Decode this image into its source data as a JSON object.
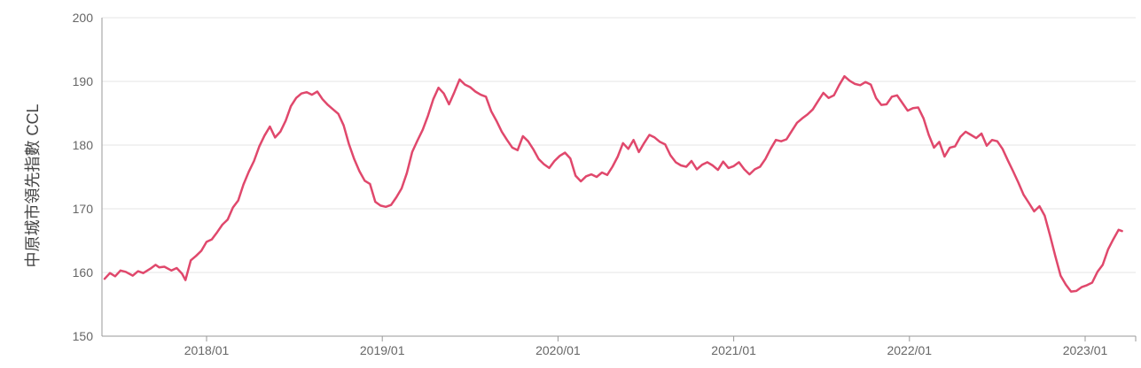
{
  "chart_data": {
    "type": "line",
    "ylabel": "中原城市領先指數 CCL",
    "ylim": [
      150,
      200
    ],
    "y_ticks": [
      150,
      160,
      170,
      180,
      190,
      200
    ],
    "x_ticks": [
      "2018/01",
      "2019/01",
      "2020/01",
      "2021/01",
      "2022/01",
      "2023/01"
    ],
    "grid": "horizontal",
    "line_color": "#e0486c",
    "series": [
      {
        "values": [
          [
            2017.42,
            159.0
          ],
          [
            2017.45,
            159.9
          ],
          [
            2017.48,
            159.4
          ],
          [
            2017.51,
            160.3
          ],
          [
            2017.54,
            160.1
          ],
          [
            2017.58,
            159.5
          ],
          [
            2017.61,
            160.2
          ],
          [
            2017.64,
            159.9
          ],
          [
            2017.68,
            160.6
          ],
          [
            2017.71,
            161.2
          ],
          [
            2017.73,
            160.8
          ],
          [
            2017.76,
            160.9
          ],
          [
            2017.8,
            160.3
          ],
          [
            2017.83,
            160.7
          ],
          [
            2017.86,
            159.8
          ],
          [
            2017.88,
            158.8
          ],
          [
            2017.91,
            161.9
          ],
          [
            2017.94,
            162.6
          ],
          [
            2017.97,
            163.4
          ],
          [
            2018.0,
            164.8
          ],
          [
            2018.03,
            165.2
          ],
          [
            2018.06,
            166.3
          ],
          [
            2018.09,
            167.5
          ],
          [
            2018.12,
            168.3
          ],
          [
            2018.15,
            170.2
          ],
          [
            2018.18,
            171.3
          ],
          [
            2018.21,
            173.8
          ],
          [
            2018.24,
            175.8
          ],
          [
            2018.27,
            177.5
          ],
          [
            2018.3,
            179.8
          ],
          [
            2018.33,
            181.5
          ],
          [
            2018.36,
            182.9
          ],
          [
            2018.39,
            181.2
          ],
          [
            2018.42,
            182.1
          ],
          [
            2018.45,
            183.8
          ],
          [
            2018.48,
            186.1
          ],
          [
            2018.51,
            187.4
          ],
          [
            2018.54,
            188.1
          ],
          [
            2018.57,
            188.3
          ],
          [
            2018.6,
            187.9
          ],
          [
            2018.63,
            188.4
          ],
          [
            2018.66,
            187.2
          ],
          [
            2018.69,
            186.3
          ],
          [
            2018.72,
            185.6
          ],
          [
            2018.75,
            184.9
          ],
          [
            2018.78,
            183.1
          ],
          [
            2018.81,
            180.2
          ],
          [
            2018.84,
            177.8
          ],
          [
            2018.87,
            175.9
          ],
          [
            2018.9,
            174.4
          ],
          [
            2018.93,
            173.9
          ],
          [
            2018.96,
            171.1
          ],
          [
            2018.99,
            170.5
          ],
          [
            2019.02,
            170.3
          ],
          [
            2019.05,
            170.6
          ],
          [
            2019.08,
            171.8
          ],
          [
            2019.11,
            173.2
          ],
          [
            2019.14,
            175.6
          ],
          [
            2019.17,
            178.9
          ],
          [
            2019.2,
            180.7
          ],
          [
            2019.23,
            182.4
          ],
          [
            2019.26,
            184.6
          ],
          [
            2019.29,
            187.2
          ],
          [
            2019.32,
            189.0
          ],
          [
            2019.35,
            188.1
          ],
          [
            2019.38,
            186.4
          ],
          [
            2019.41,
            188.3
          ],
          [
            2019.44,
            190.3
          ],
          [
            2019.47,
            189.5
          ],
          [
            2019.5,
            189.1
          ],
          [
            2019.53,
            188.4
          ],
          [
            2019.56,
            187.9
          ],
          [
            2019.59,
            187.6
          ],
          [
            2019.62,
            185.3
          ],
          [
            2019.65,
            183.8
          ],
          [
            2019.68,
            182.1
          ],
          [
            2019.71,
            180.8
          ],
          [
            2019.74,
            179.6
          ],
          [
            2019.77,
            179.2
          ],
          [
            2019.8,
            181.4
          ],
          [
            2019.83,
            180.6
          ],
          [
            2019.86,
            179.3
          ],
          [
            2019.89,
            177.8
          ],
          [
            2019.92,
            177.0
          ],
          [
            2019.95,
            176.4
          ],
          [
            2019.98,
            177.5
          ],
          [
            2020.01,
            178.3
          ],
          [
            2020.04,
            178.8
          ],
          [
            2020.07,
            177.9
          ],
          [
            2020.1,
            175.2
          ],
          [
            2020.13,
            174.3
          ],
          [
            2020.16,
            175.1
          ],
          [
            2020.19,
            175.4
          ],
          [
            2020.22,
            175.0
          ],
          [
            2020.25,
            175.7
          ],
          [
            2020.28,
            175.3
          ],
          [
            2020.31,
            176.6
          ],
          [
            2020.34,
            178.2
          ],
          [
            2020.37,
            180.3
          ],
          [
            2020.4,
            179.4
          ],
          [
            2020.43,
            180.8
          ],
          [
            2020.46,
            178.9
          ],
          [
            2020.49,
            180.3
          ],
          [
            2020.52,
            181.6
          ],
          [
            2020.55,
            181.2
          ],
          [
            2020.58,
            180.5
          ],
          [
            2020.61,
            180.1
          ],
          [
            2020.64,
            178.4
          ],
          [
            2020.67,
            177.3
          ],
          [
            2020.7,
            176.8
          ],
          [
            2020.73,
            176.6
          ],
          [
            2020.76,
            177.5
          ],
          [
            2020.79,
            176.2
          ],
          [
            2020.82,
            176.9
          ],
          [
            2020.85,
            177.3
          ],
          [
            2020.88,
            176.8
          ],
          [
            2020.91,
            176.1
          ],
          [
            2020.94,
            177.4
          ],
          [
            2020.97,
            176.4
          ],
          [
            2021.0,
            176.7
          ],
          [
            2021.03,
            177.3
          ],
          [
            2021.06,
            176.2
          ],
          [
            2021.09,
            175.4
          ],
          [
            2021.12,
            176.2
          ],
          [
            2021.15,
            176.6
          ],
          [
            2021.18,
            177.8
          ],
          [
            2021.21,
            179.4
          ],
          [
            2021.24,
            180.8
          ],
          [
            2021.27,
            180.6
          ],
          [
            2021.3,
            180.9
          ],
          [
            2021.33,
            182.2
          ],
          [
            2021.36,
            183.5
          ],
          [
            2021.39,
            184.2
          ],
          [
            2021.42,
            184.8
          ],
          [
            2021.45,
            185.6
          ],
          [
            2021.48,
            186.9
          ],
          [
            2021.51,
            188.2
          ],
          [
            2021.54,
            187.4
          ],
          [
            2021.57,
            187.8
          ],
          [
            2021.6,
            189.4
          ],
          [
            2021.63,
            190.8
          ],
          [
            2021.66,
            190.1
          ],
          [
            2021.69,
            189.6
          ],
          [
            2021.72,
            189.4
          ],
          [
            2021.75,
            189.9
          ],
          [
            2021.78,
            189.5
          ],
          [
            2021.81,
            187.4
          ],
          [
            2021.84,
            186.3
          ],
          [
            2021.87,
            186.4
          ],
          [
            2021.9,
            187.6
          ],
          [
            2021.93,
            187.8
          ],
          [
            2021.96,
            186.6
          ],
          [
            2021.99,
            185.4
          ],
          [
            2022.02,
            185.8
          ],
          [
            2022.05,
            185.9
          ],
          [
            2022.08,
            184.2
          ],
          [
            2022.11,
            181.6
          ],
          [
            2022.14,
            179.6
          ],
          [
            2022.17,
            180.5
          ],
          [
            2022.2,
            178.2
          ],
          [
            2022.23,
            179.6
          ],
          [
            2022.26,
            179.8
          ],
          [
            2022.29,
            181.3
          ],
          [
            2022.32,
            182.1
          ],
          [
            2022.35,
            181.6
          ],
          [
            2022.38,
            181.1
          ],
          [
            2022.41,
            181.8
          ],
          [
            2022.44,
            179.9
          ],
          [
            2022.47,
            180.8
          ],
          [
            2022.5,
            180.6
          ],
          [
            2022.53,
            179.4
          ],
          [
            2022.56,
            177.6
          ],
          [
            2022.59,
            175.9
          ],
          [
            2022.62,
            174.1
          ],
          [
            2022.65,
            172.2
          ],
          [
            2022.68,
            170.9
          ],
          [
            2022.71,
            169.6
          ],
          [
            2022.74,
            170.4
          ],
          [
            2022.77,
            168.9
          ],
          [
            2022.8,
            165.8
          ],
          [
            2022.83,
            162.6
          ],
          [
            2022.86,
            159.5
          ],
          [
            2022.89,
            158.1
          ],
          [
            2022.92,
            157.0
          ],
          [
            2022.95,
            157.1
          ],
          [
            2022.98,
            157.7
          ],
          [
            2023.01,
            158.0
          ],
          [
            2023.04,
            158.4
          ],
          [
            2023.07,
            160.1
          ],
          [
            2023.1,
            161.2
          ],
          [
            2023.13,
            163.6
          ],
          [
            2023.16,
            165.2
          ],
          [
            2023.19,
            166.7
          ],
          [
            2023.21,
            166.5
          ]
        ]
      }
    ]
  }
}
